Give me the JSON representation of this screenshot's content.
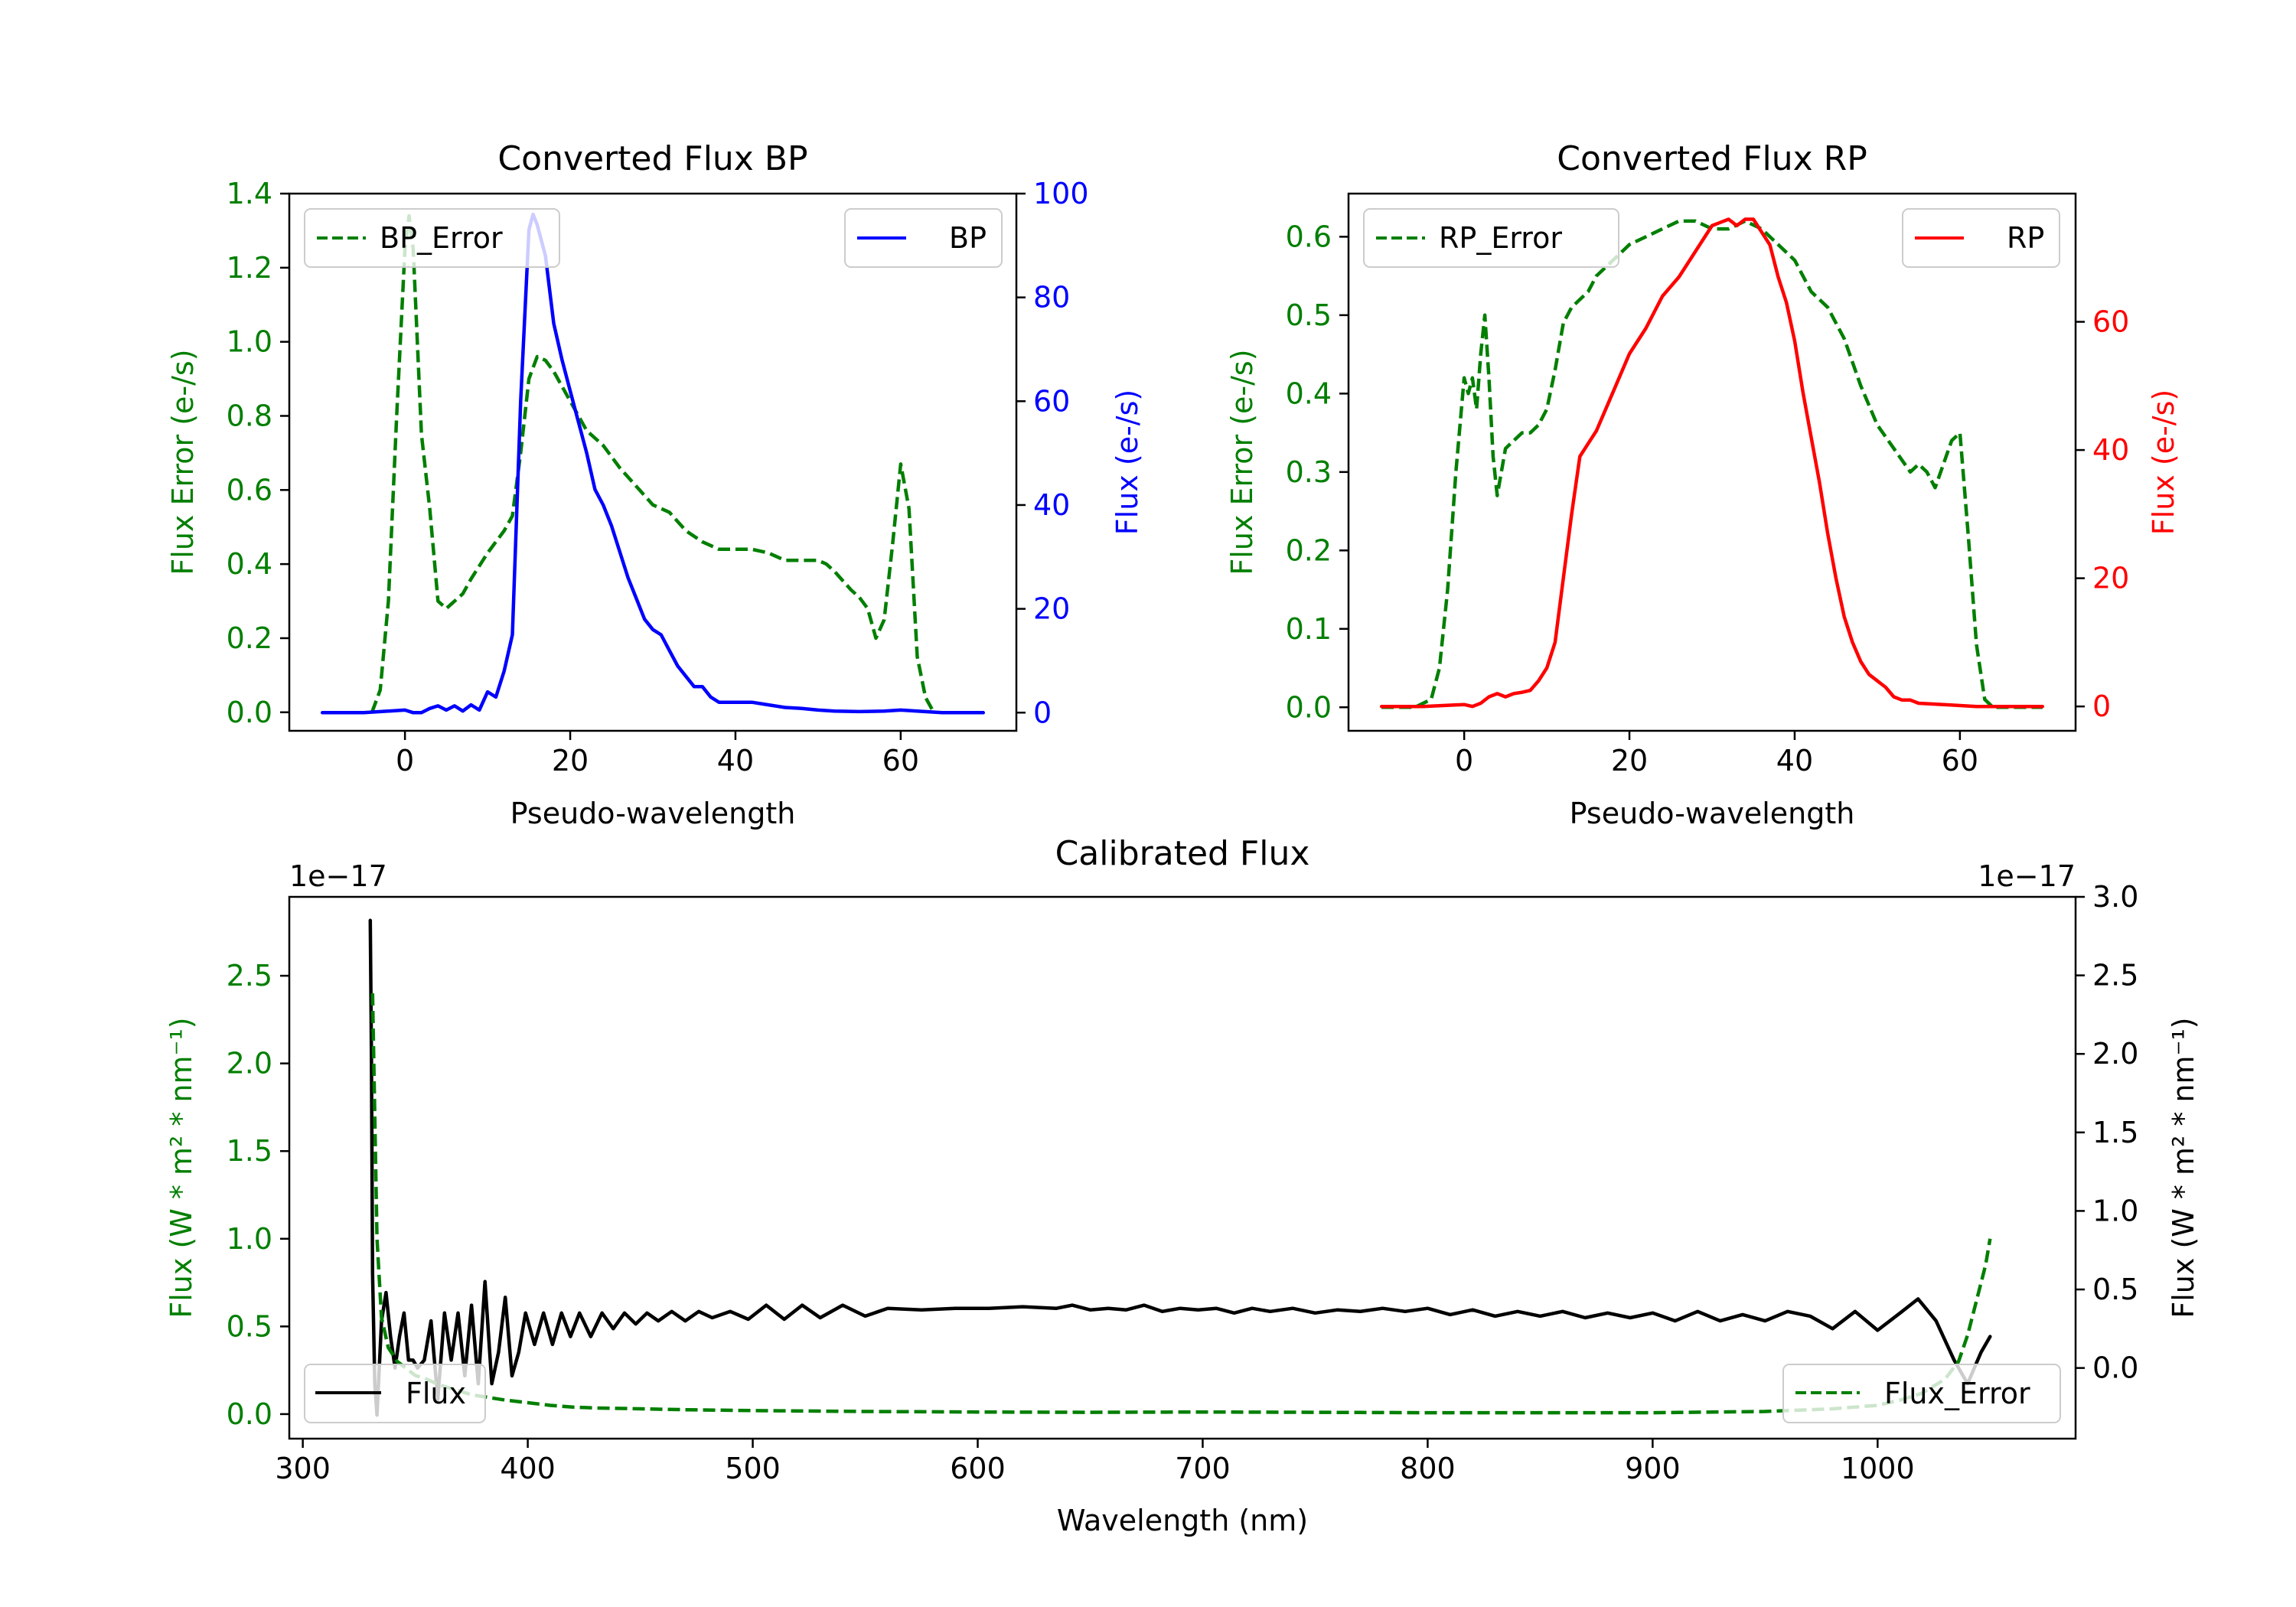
{
  "colors": {
    "green": "#007f00",
    "blue": "#0000ff",
    "red": "#ff0000",
    "black": "#000000"
  },
  "chart_data": [
    {
      "id": "bp",
      "type": "line",
      "title": "Converted Flux BP",
      "xlabel": "Pseudo-wavelength",
      "ylabel_left": "Flux Error (e-/s)",
      "ylabel_right": "Flux (e-/s)",
      "xlim": [
        -14,
        74
      ],
      "ylim_left": [
        -0.05,
        1.4
      ],
      "ylim_right": [
        -3.5,
        100
      ],
      "xticks": [
        0,
        20,
        40,
        60
      ],
      "yticks_left": [
        0.0,
        0.2,
        0.4,
        0.6,
        0.8,
        1.0,
        1.2,
        1.4
      ],
      "yticks_right": [
        0,
        20,
        40,
        60,
        80,
        100
      ],
      "series": [
        {
          "name": "BP_Error",
          "axis": "left",
          "style": "dashed",
          "color": "#007f00",
          "x": [
            -4,
            -3,
            -2,
            -1,
            0,
            0.5,
            1,
            2,
            3,
            4,
            5,
            6,
            7,
            8,
            10,
            12,
            13,
            14,
            15,
            16,
            17,
            18,
            19,
            20,
            22,
            24,
            26,
            28,
            30,
            32,
            34,
            36,
            38,
            40,
            42,
            44,
            46,
            48,
            50,
            51,
            52,
            54,
            55,
            56,
            57,
            58,
            59,
            60,
            61,
            62,
            63,
            64
          ],
          "y": [
            0.0,
            0.06,
            0.3,
            0.8,
            1.25,
            1.34,
            1.25,
            0.75,
            0.55,
            0.3,
            0.28,
            0.3,
            0.32,
            0.36,
            0.43,
            0.49,
            0.53,
            0.7,
            0.9,
            0.96,
            0.95,
            0.92,
            0.88,
            0.84,
            0.76,
            0.72,
            0.66,
            0.61,
            0.56,
            0.54,
            0.49,
            0.46,
            0.44,
            0.44,
            0.44,
            0.43,
            0.41,
            0.41,
            0.41,
            0.4,
            0.38,
            0.33,
            0.31,
            0.28,
            0.2,
            0.25,
            0.45,
            0.67,
            0.55,
            0.15,
            0.04,
            0.0
          ]
        },
        {
          "name": "BP",
          "axis": "right",
          "style": "solid",
          "color": "#0000ff",
          "x": [
            -10,
            -5,
            0,
            1,
            2,
            3,
            4,
            5,
            6,
            7,
            8,
            9,
            10,
            11,
            12,
            13,
            14,
            15,
            15.5,
            16,
            17,
            18,
            19,
            20,
            21,
            22,
            23,
            24,
            25,
            26,
            27,
            28,
            29,
            30,
            31,
            32,
            33,
            34,
            35,
            36,
            37,
            38,
            40,
            42,
            44,
            46,
            48,
            50,
            52,
            55,
            58,
            60,
            62,
            65,
            70
          ],
          "y": [
            0,
            0,
            0.5,
            0,
            0,
            0.8,
            1.3,
            0.5,
            1.3,
            0.3,
            1.5,
            0.5,
            4,
            3,
            8,
            15,
            60,
            93,
            96,
            94,
            88,
            75,
            68,
            62,
            56,
            50,
            43,
            40,
            36,
            31,
            26,
            22,
            18,
            16,
            15,
            12,
            9,
            7,
            5,
            5,
            3,
            2,
            2,
            2,
            1.5,
            1,
            0.8,
            0.5,
            0.3,
            0.2,
            0.3,
            0.5,
            0.3,
            0,
            0
          ]
        }
      ],
      "legend": [
        {
          "label": "BP_Error",
          "position": "upper-left"
        },
        {
          "label": "BP",
          "position": "upper-right"
        }
      ]
    },
    {
      "id": "rp",
      "type": "line",
      "title": "Converted Flux RP",
      "xlabel": "Pseudo-wavelength",
      "ylabel_left": "Flux Error (e-/s)",
      "ylabel_right": "Flux (e-/s)",
      "xlim": [
        -14,
        74
      ],
      "ylim_left": [
        -0.03,
        0.655
      ],
      "ylim_right": [
        -3.8,
        80
      ],
      "xticks": [
        0,
        20,
        40,
        60
      ],
      "yticks_left": [
        0.0,
        0.1,
        0.2,
        0.3,
        0.4,
        0.5,
        0.6
      ],
      "yticks_right": [
        0,
        20,
        40,
        60
      ],
      "series": [
        {
          "name": "RP_Error",
          "axis": "left",
          "style": "dashed",
          "color": "#007f00",
          "x": [
            -10,
            -6,
            -4,
            -3,
            -2,
            -1,
            0,
            0.5,
            1,
            1.5,
            2,
            2.5,
            3,
            3.5,
            4,
            5,
            6,
            7,
            8,
            9,
            10,
            11,
            12,
            13,
            14,
            15,
            16,
            17,
            18,
            19,
            20,
            22,
            24,
            26,
            28,
            30,
            32,
            34,
            36,
            38,
            40,
            42,
            44,
            46,
            48,
            50,
            52,
            54,
            55,
            56,
            57,
            58,
            59,
            60,
            61,
            62,
            63,
            64,
            66,
            70
          ],
          "y": [
            0.0,
            0.0,
            0.01,
            0.05,
            0.15,
            0.3,
            0.42,
            0.4,
            0.42,
            0.38,
            0.45,
            0.5,
            0.42,
            0.32,
            0.27,
            0.33,
            0.34,
            0.35,
            0.35,
            0.36,
            0.38,
            0.43,
            0.49,
            0.51,
            0.52,
            0.53,
            0.55,
            0.56,
            0.57,
            0.58,
            0.59,
            0.6,
            0.61,
            0.62,
            0.62,
            0.61,
            0.61,
            0.62,
            0.61,
            0.59,
            0.57,
            0.53,
            0.51,
            0.47,
            0.41,
            0.36,
            0.33,
            0.3,
            0.31,
            0.3,
            0.28,
            0.31,
            0.34,
            0.35,
            0.22,
            0.08,
            0.01,
            0.0,
            0.0,
            0.0
          ]
        },
        {
          "name": "RP",
          "axis": "right",
          "style": "solid",
          "color": "#ff0000",
          "x": [
            -10,
            -5,
            0,
            1,
            2,
            3,
            4,
            5,
            6,
            7,
            8,
            9,
            10,
            11,
            12,
            13,
            14,
            15,
            16,
            18,
            20,
            22,
            24,
            26,
            28,
            30,
            31,
            32,
            33,
            34,
            35,
            36,
            37,
            38,
            39,
            40,
            41,
            42,
            43,
            44,
            45,
            46,
            47,
            48,
            49,
            50,
            51,
            52,
            53,
            54,
            55,
            58,
            62,
            66,
            70
          ],
          "y": [
            0,
            0,
            0.3,
            0,
            0.5,
            1.5,
            2,
            1.5,
            2,
            2.2,
            2.5,
            4,
            6,
            10,
            20,
            30,
            39,
            41,
            43,
            49,
            55,
            59,
            64,
            67,
            71,
            75,
            75.5,
            76,
            75,
            76,
            76,
            74,
            72,
            67,
            63,
            57,
            49,
            42,
            35,
            27,
            20,
            14,
            10,
            7,
            5,
            4,
            3,
            1.5,
            1,
            1,
            0.5,
            0.3,
            0,
            0,
            0
          ]
        }
      ],
      "legend": [
        {
          "label": "RP_Error",
          "position": "upper-left"
        },
        {
          "label": "RP",
          "position": "upper-right"
        }
      ]
    },
    {
      "id": "cal",
      "type": "line",
      "title": "Calibrated Flux",
      "xlabel": "Wavelength (nm)",
      "ylabel_left": "Flux (W * m² * nm⁻¹)",
      "ylabel_right": "Flux (W * m² * nm⁻¹)",
      "offset_left": "1e−17",
      "offset_right": "1e−17",
      "xlim": [
        294,
        1088
      ],
      "ylim_left": [
        -0.14,
        2.95
      ],
      "ylim_right": [
        -0.45,
        3.0
      ],
      "xticks": [
        300,
        400,
        500,
        600,
        700,
        800,
        900,
        1000
      ],
      "yticks_left": [
        0.0,
        0.5,
        1.0,
        1.5,
        2.0,
        2.5
      ],
      "yticks_right": [
        0.0,
        0.5,
        1.0,
        1.5,
        2.0,
        2.5,
        3.0
      ],
      "series": [
        {
          "name": "Flux",
          "axis": "right",
          "style": "solid",
          "color": "#000000",
          "x": [
            330,
            330.5,
            331,
            332,
            333,
            335,
            337,
            339,
            341,
            343,
            345,
            347,
            349,
            351,
            354,
            357,
            360,
            363,
            366,
            369,
            372,
            375,
            378,
            381,
            384,
            387,
            390,
            393,
            396,
            399,
            403,
            407,
            411,
            415,
            419,
            423,
            428,
            433,
            438,
            443,
            448,
            453,
            458,
            464,
            470,
            476,
            482,
            490,
            498,
            506,
            514,
            522,
            530,
            540,
            550,
            560,
            575,
            590,
            605,
            620,
            635,
            642,
            650,
            658,
            666,
            674,
            682,
            690,
            698,
            706,
            714,
            722,
            730,
            740,
            750,
            760,
            770,
            780,
            790,
            800,
            810,
            820,
            830,
            840,
            850,
            860,
            870,
            880,
            890,
            900,
            910,
            920,
            930,
            940,
            950,
            960,
            970,
            980,
            990,
            1000,
            1010,
            1018,
            1026,
            1034,
            1040,
            1046,
            1050
          ],
          "y": [
            2.85,
            2.0,
            0.6,
            -0.1,
            -0.3,
            0.3,
            0.48,
            0.2,
            0.0,
            0.2,
            0.35,
            0.05,
            0.05,
            0.0,
            0.05,
            0.3,
            -0.2,
            0.35,
            0.05,
            0.35,
            -0.05,
            0.4,
            -0.1,
            0.55,
            -0.1,
            0.1,
            0.45,
            -0.05,
            0.1,
            0.35,
            0.15,
            0.35,
            0.15,
            0.35,
            0.2,
            0.35,
            0.2,
            0.35,
            0.25,
            0.35,
            0.28,
            0.35,
            0.3,
            0.36,
            0.3,
            0.36,
            0.32,
            0.36,
            0.31,
            0.4,
            0.31,
            0.4,
            0.32,
            0.4,
            0.33,
            0.38,
            0.37,
            0.38,
            0.38,
            0.39,
            0.38,
            0.4,
            0.37,
            0.38,
            0.37,
            0.4,
            0.36,
            0.38,
            0.37,
            0.38,
            0.35,
            0.38,
            0.36,
            0.38,
            0.35,
            0.37,
            0.36,
            0.38,
            0.36,
            0.38,
            0.34,
            0.37,
            0.33,
            0.36,
            0.33,
            0.36,
            0.32,
            0.35,
            0.32,
            0.35,
            0.3,
            0.36,
            0.3,
            0.34,
            0.3,
            0.36,
            0.33,
            0.25,
            0.36,
            0.24,
            0.35,
            0.44,
            0.3,
            0.05,
            -0.1,
            0.1,
            0.2
          ]
        },
        {
          "name": "Flux_Error",
          "axis": "left",
          "style": "dashed",
          "color": "#007f00",
          "x": [
            331,
            333,
            335,
            338,
            342,
            346,
            350,
            355,
            360,
            365,
            370,
            375,
            380,
            385,
            390,
            400,
            410,
            420,
            430,
            450,
            470,
            500,
            550,
            600,
            650,
            700,
            750,
            800,
            850,
            900,
            950,
            980,
            1000,
            1010,
            1020,
            1030,
            1036,
            1040,
            1044,
            1048,
            1050
          ],
          "y": [
            2.4,
            1.0,
            0.55,
            0.38,
            0.3,
            0.26,
            0.22,
            0.2,
            0.17,
            0.15,
            0.13,
            0.11,
            0.1,
            0.09,
            0.08,
            0.065,
            0.05,
            0.04,
            0.035,
            0.03,
            0.025,
            0.02,
            0.015,
            0.012,
            0.01,
            0.012,
            0.01,
            0.008,
            0.008,
            0.008,
            0.015,
            0.03,
            0.05,
            0.08,
            0.12,
            0.2,
            0.3,
            0.45,
            0.65,
            0.85,
            1.0
          ]
        }
      ],
      "legend": [
        {
          "label": "Flux",
          "position": "lower-left"
        },
        {
          "label": "Flux_Error",
          "position": "lower-right"
        }
      ]
    }
  ]
}
